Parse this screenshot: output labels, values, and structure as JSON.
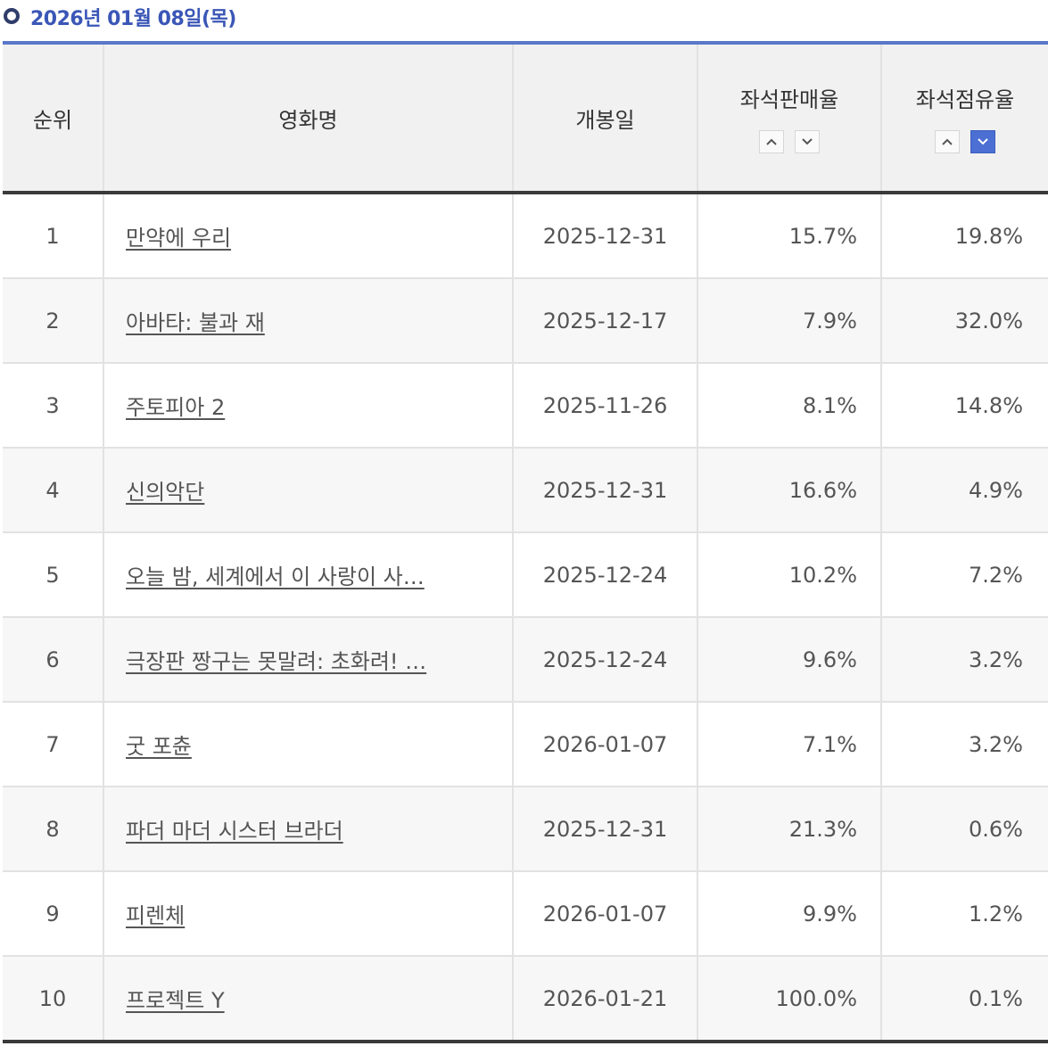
{
  "header": {
    "date": "2026년 01월 08일(목)"
  },
  "table": {
    "columns": {
      "rank": "순위",
      "title": "영화명",
      "release": "개봉일",
      "seat_sales": "좌석판매율",
      "seat_share": "좌석점유율"
    },
    "rows": [
      {
        "rank": "1",
        "title": "만약에 우리",
        "release": "2025-12-31",
        "seat_sales": "15.7%",
        "seat_share": "19.8%"
      },
      {
        "rank": "2",
        "title": "아바타: 불과 재",
        "release": "2025-12-17",
        "seat_sales": "7.9%",
        "seat_share": "32.0%"
      },
      {
        "rank": "3",
        "title": "주토피아 2",
        "release": "2025-11-26",
        "seat_sales": "8.1%",
        "seat_share": "14.8%"
      },
      {
        "rank": "4",
        "title": "신의악단",
        "release": "2025-12-31",
        "seat_sales": "16.6%",
        "seat_share": "4.9%"
      },
      {
        "rank": "5",
        "title": "오늘 밤, 세계에서 이 사랑이 사…",
        "release": "2025-12-24",
        "seat_sales": "10.2%",
        "seat_share": "7.2%"
      },
      {
        "rank": "6",
        "title": "극장판 짱구는 못말려: 초화려! …",
        "release": "2025-12-24",
        "seat_sales": "9.6%",
        "seat_share": "3.2%"
      },
      {
        "rank": "7",
        "title": "굿 포츈",
        "release": "2026-01-07",
        "seat_sales": "7.1%",
        "seat_share": "3.2%"
      },
      {
        "rank": "8",
        "title": "파더 마더 시스터 브라더",
        "release": "2025-12-31",
        "seat_sales": "21.3%",
        "seat_share": "0.6%"
      },
      {
        "rank": "9",
        "title": "피렌체",
        "release": "2026-01-07",
        "seat_sales": "9.9%",
        "seat_share": "1.2%"
      },
      {
        "rank": "10",
        "title": "프로젝트 Y",
        "release": "2026-01-21",
        "seat_sales": "100.0%",
        "seat_share": "0.1%"
      }
    ]
  },
  "sort": {
    "seat_sales": {
      "ascending_icon": "chevron-up-icon",
      "descending_icon": "chevron-down-icon",
      "active": "none"
    },
    "seat_share": {
      "ascending_icon": "chevron-up-icon",
      "descending_icon": "chevron-down-icon",
      "active": "descending"
    }
  },
  "colors": {
    "accent": "#3a56b6",
    "rule": "#5a77c9",
    "active_sort": "#4b6fd3",
    "header_bg": "#f1f1f1"
  }
}
